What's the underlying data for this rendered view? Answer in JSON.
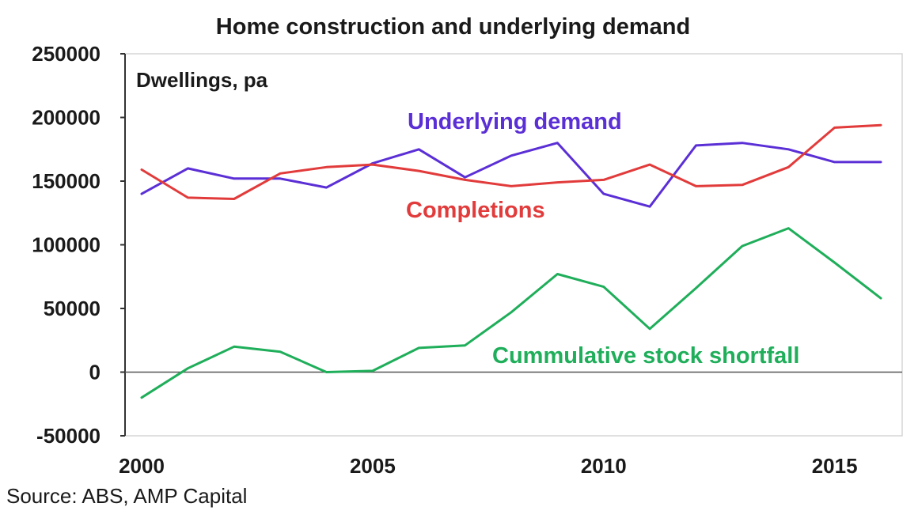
{
  "chart_data": {
    "type": "line",
    "title": "Home construction and underlying demand",
    "unit_label": "Dwellings, pa",
    "source": "Source: ABS, AMP Capital",
    "xlabel": "",
    "ylabel": "",
    "xlim": [
      2000,
      2016
    ],
    "ylim": [
      -50000,
      250000
    ],
    "x_ticks": [
      2000,
      2005,
      2010,
      2015
    ],
    "y_ticks": [
      -50000,
      0,
      50000,
      100000,
      150000,
      200000,
      250000
    ],
    "grid": false,
    "x": [
      2000,
      2001,
      2002,
      2003,
      2004,
      2005,
      2006,
      2007,
      2008,
      2009,
      2010,
      2011,
      2012,
      2013,
      2014,
      2015,
      2016
    ],
    "series": [
      {
        "name": "Underlying demand",
        "color": "#5b2fd6",
        "values": [
          140000,
          160000,
          152000,
          152000,
          145000,
          164000,
          175000,
          153000,
          170000,
          180000,
          140000,
          130000,
          178000,
          180000,
          175000,
          165000,
          165000
        ]
      },
      {
        "name": "Completions",
        "color": "#e23b3b",
        "values": [
          159000,
          137000,
          136000,
          156000,
          161000,
          163000,
          158000,
          151000,
          146000,
          149000,
          151000,
          163000,
          146000,
          147000,
          161000,
          192000,
          194000
        ]
      },
      {
        "name": "Cummulative stock shortfall",
        "color": "#1fae5a",
        "values": [
          -20000,
          3000,
          20000,
          16000,
          0,
          1000,
          19000,
          21000,
          47000,
          77000,
          67000,
          34000,
          66000,
          99000,
          113000,
          86000,
          58000
        ]
      }
    ]
  }
}
